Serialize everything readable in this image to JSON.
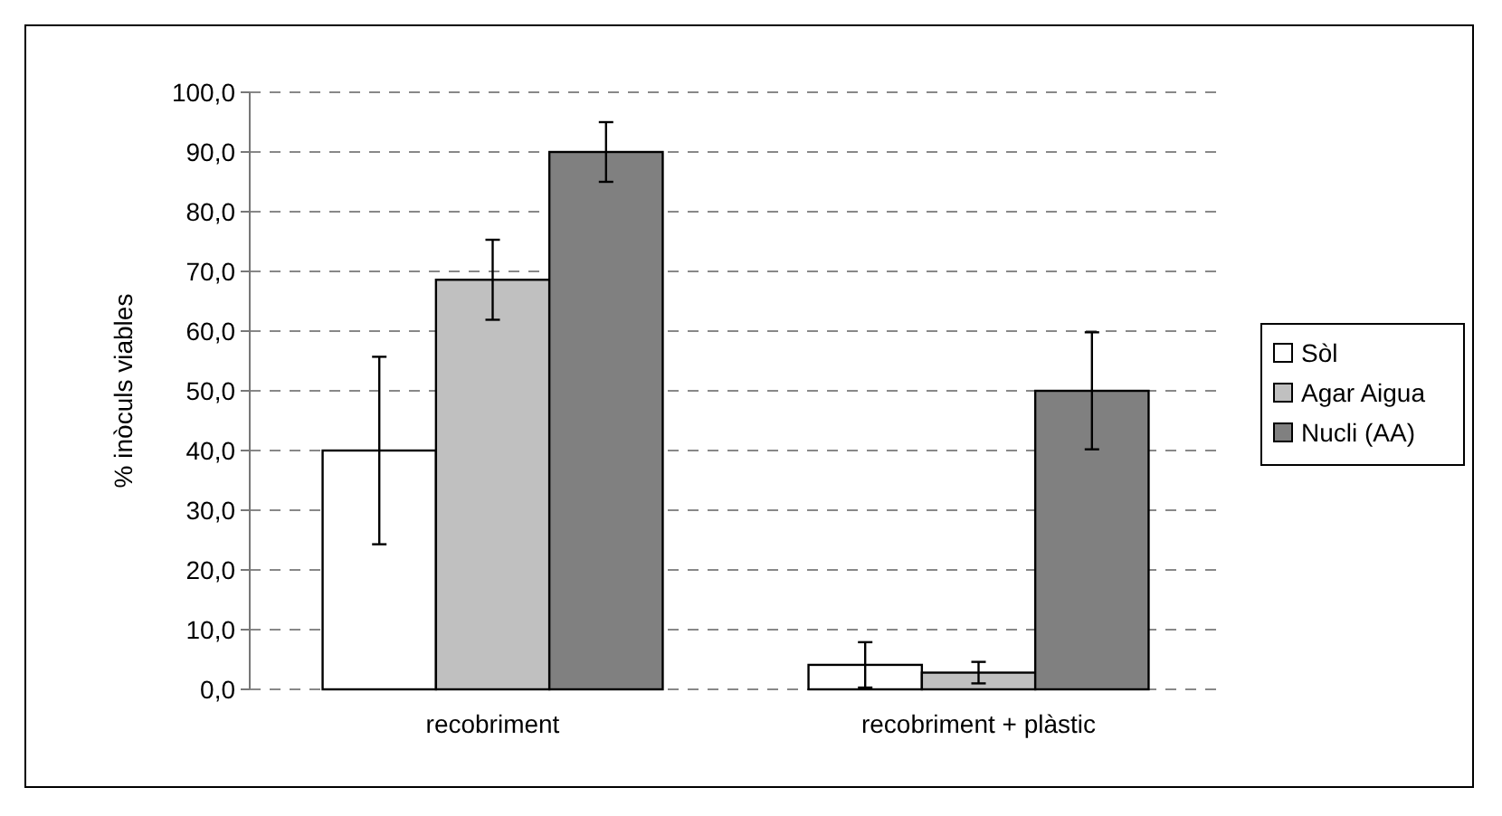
{
  "chart_data": {
    "type": "bar",
    "ylabel": "% inòculs viables",
    "categories": [
      "recobriment",
      "recobriment + plàstic"
    ],
    "series": [
      {
        "name": "Sòl",
        "color": "#ffffff",
        "values": [
          40.0,
          4.1
        ],
        "errors": [
          15.7,
          3.8
        ]
      },
      {
        "name": "Agar Aigua",
        "color": "#c0c0c0",
        "values": [
          68.6,
          2.8
        ],
        "errors": [
          6.7,
          1.8
        ]
      },
      {
        "name": "Nucli (AA)",
        "color": "#808080",
        "values": [
          90.0,
          50.0
        ],
        "errors": [
          5.0,
          9.8
        ]
      }
    ],
    "ylim": [
      0,
      100
    ],
    "yticks": [
      {
        "value": 0,
        "label": "0,0"
      },
      {
        "value": 10,
        "label": "10,0"
      },
      {
        "value": 20,
        "label": "20,0"
      },
      {
        "value": 30,
        "label": "30,0"
      },
      {
        "value": 40,
        "label": "40,0"
      },
      {
        "value": 50,
        "label": "50,0"
      },
      {
        "value": 60,
        "label": "60,0"
      },
      {
        "value": 70,
        "label": "70,0"
      },
      {
        "value": 80,
        "label": "80,0"
      },
      {
        "value": 90,
        "label": "90,0"
      },
      {
        "value": 100,
        "label": "100,0"
      }
    ],
    "grid": "y",
    "legend": "right"
  }
}
